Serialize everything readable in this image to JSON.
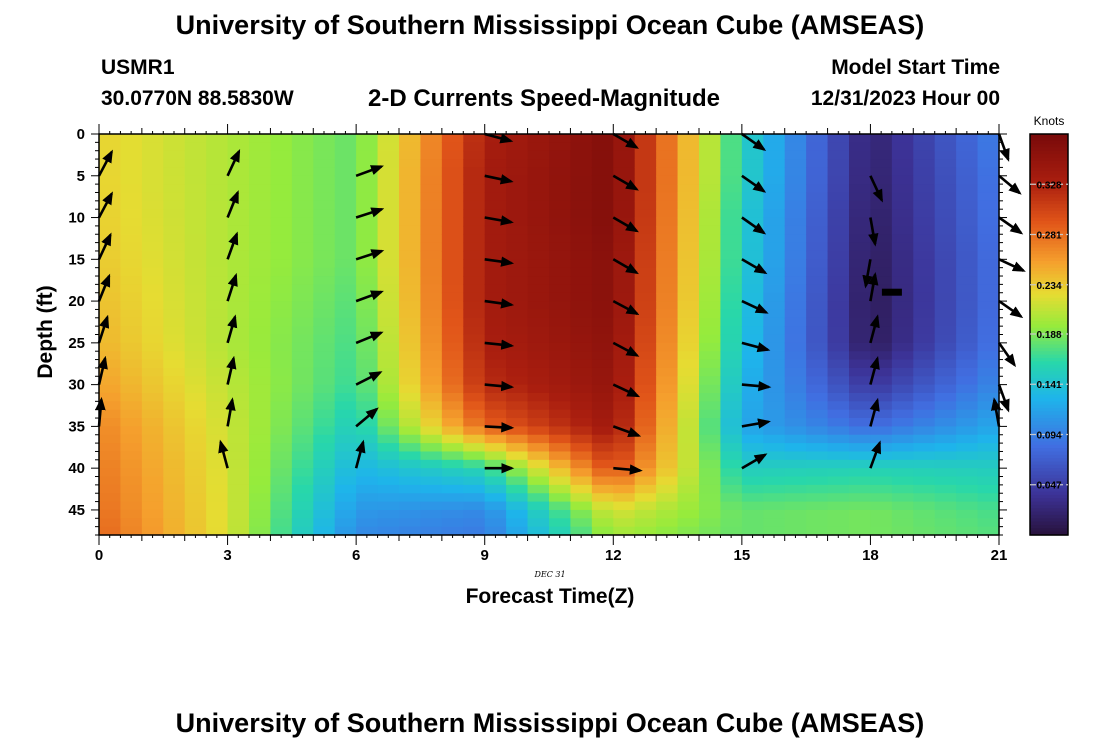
{
  "header": {
    "title": "University of Southern Mississippi Ocean Cube (AMSEAS)",
    "station": "USMR1",
    "coords": "30.0770N  88.5830W",
    "subtitle": "2-D Currents Speed-Magnitude",
    "model_start_label": "Model Start Time",
    "model_start_value": "12/31/2023 Hour 00"
  },
  "footer": {
    "title": "University of Southern Mississippi Ocean Cube (AMSEAS)"
  },
  "chart_data": {
    "type": "heatmap",
    "title": "2-D Currents Speed-Magnitude",
    "xlabel": "Forecast Time(Z)",
    "ylabel": "Depth (ft)",
    "date_label": "DEC  31",
    "xlim": [
      0,
      21
    ],
    "ylim": [
      48,
      0
    ],
    "x_ticks": [
      0,
      3,
      6,
      9,
      12,
      15,
      18,
      21
    ],
    "y_ticks": [
      0,
      5,
      10,
      15,
      20,
      25,
      30,
      35,
      40,
      45
    ],
    "colorbar": {
      "label": "Knots",
      "range": [
        0.0,
        0.375
      ],
      "ticks": [
        "0.047",
        "0.094",
        "0.141",
        "0.188",
        "0.234",
        "0.281",
        "0.328"
      ]
    },
    "times": [
      0,
      3,
      6,
      9,
      12,
      15,
      18,
      21
    ],
    "depth_levels": [
      0,
      5,
      10,
      15,
      20,
      25,
      30,
      35,
      40,
      45,
      48
    ],
    "speed_knots": [
      [
        0.23,
        0.205,
        0.18,
        0.33,
        0.365,
        0.155,
        0.02,
        0.095
      ],
      [
        0.23,
        0.205,
        0.18,
        0.335,
        0.365,
        0.155,
        0.018,
        0.09
      ],
      [
        0.232,
        0.205,
        0.18,
        0.335,
        0.365,
        0.15,
        0.015,
        0.088
      ],
      [
        0.235,
        0.205,
        0.18,
        0.335,
        0.36,
        0.15,
        0.012,
        0.085
      ],
      [
        0.24,
        0.205,
        0.175,
        0.335,
        0.36,
        0.145,
        0.01,
        0.085
      ],
      [
        0.245,
        0.205,
        0.17,
        0.33,
        0.355,
        0.14,
        0.012,
        0.088
      ],
      [
        0.255,
        0.21,
        0.165,
        0.32,
        0.35,
        0.13,
        0.04,
        0.1
      ],
      [
        0.268,
        0.215,
        0.15,
        0.285,
        0.34,
        0.12,
        0.08,
        0.12
      ],
      [
        0.275,
        0.218,
        0.13,
        0.16,
        0.3,
        0.15,
        0.155,
        0.15
      ],
      [
        0.28,
        0.22,
        0.11,
        0.1,
        0.22,
        0.18,
        0.185,
        0.17
      ],
      [
        0.285,
        0.22,
        0.1,
        0.09,
        0.2,
        0.18,
        0.185,
        0.175
      ]
    ],
    "vectors": [
      {
        "t": 0,
        "depths": [
          5,
          10,
          15,
          20,
          25,
          30,
          35
        ],
        "angles_deg": [
          62,
          62,
          65,
          68,
          72,
          77,
          85
        ]
      },
      {
        "t": 3,
        "depths": [
          5,
          10,
          15,
          20,
          25,
          30,
          35,
          40
        ],
        "angles_deg": [
          65,
          68,
          70,
          72,
          74,
          77,
          80,
          105
        ]
      },
      {
        "t": 6,
        "depths": [
          5,
          10,
          15,
          20,
          25,
          30,
          35,
          40
        ],
        "angles_deg": [
          20,
          18,
          18,
          20,
          22,
          27,
          40,
          75
        ]
      },
      {
        "t": 9,
        "depths": [
          0,
          5,
          10,
          15,
          20,
          25,
          30,
          35,
          40
        ],
        "angles_deg": [
          -15,
          -12,
          -10,
          -8,
          -8,
          -6,
          -5,
          -3,
          0
        ]
      },
      {
        "t": 12,
        "depths": [
          0,
          5,
          10,
          15,
          20,
          25,
          30,
          35,
          40
        ],
        "angles_deg": [
          -30,
          -30,
          -30,
          -30,
          -28,
          -28,
          -25,
          -20,
          -5
        ]
      },
      {
        "t": 15,
        "depths": [
          0,
          5,
          10,
          15,
          20,
          25,
          30,
          35,
          40
        ],
        "angles_deg": [
          -35,
          -35,
          -35,
          -30,
          -25,
          -15,
          -5,
          10,
          30
        ]
      },
      {
        "t": 18,
        "depths": [
          5,
          10,
          15,
          20,
          25,
          30,
          35,
          40
        ],
        "angles_deg": [
          -65,
          -80,
          -100,
          80,
          75,
          75,
          75,
          70
        ]
      },
      {
        "t": 21,
        "depths": [
          0,
          5,
          10,
          15,
          20,
          25,
          30,
          35
        ],
        "angles_deg": [
          -70,
          -40,
          -35,
          -25,
          -35,
          -55,
          -70,
          100
        ]
      }
    ]
  }
}
